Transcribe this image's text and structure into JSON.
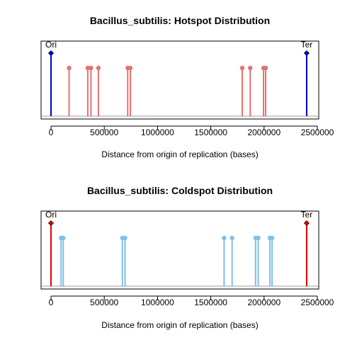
{
  "chart_data": [
    {
      "type": "lollipop",
      "title": "Bacillus_subtilis: Hotspot Distribution",
      "xlabel": "Distance from origin of replication (bases)",
      "xlim": [
        0,
        2500000
      ],
      "xticks": [
        0,
        500000,
        1000000,
        1500000,
        2000000,
        2500000
      ],
      "xtick_labels": [
        "0",
        "500000",
        "1000000",
        "1500000",
        "2000000",
        "2500000"
      ],
      "spot_color": "#E8706E",
      "marker_color": "#0000CC",
      "markers": [
        {
          "label": "Ori",
          "x": 0
        },
        {
          "label": "Ter",
          "x": 2400000
        }
      ],
      "spots": [
        170000,
        345000,
        375000,
        445000,
        720000,
        745000,
        1795000,
        1870000,
        1995000,
        2015000
      ]
    },
    {
      "type": "lollipop",
      "title": "Bacillus_subtilis: Coldspot Distribution",
      "xlabel": "Distance from origin of replication (bases)",
      "xlim": [
        0,
        2500000
      ],
      "xticks": [
        0,
        500000,
        1000000,
        1500000,
        2000000,
        2500000
      ],
      "xtick_labels": [
        "0",
        "500000",
        "1000000",
        "1500000",
        "2000000",
        "2500000"
      ],
      "spot_color": "#7FC0EA",
      "marker_color": "#E00000",
      "markers": [
        {
          "label": "Ori",
          "x": 0
        },
        {
          "label": "Ter",
          "x": 2400000
        }
      ],
      "spots": [
        95000,
        115000,
        670000,
        695000,
        1625000,
        1700000,
        1920000,
        1945000,
        2055000,
        2075000
      ]
    }
  ]
}
